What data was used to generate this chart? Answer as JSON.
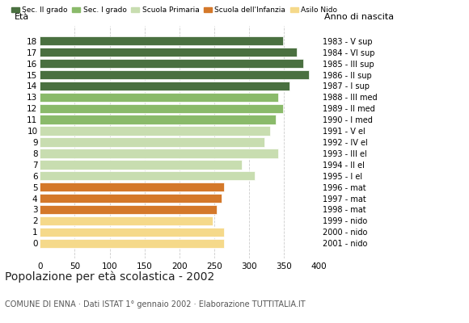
{
  "ages_bottom_to_top": [
    0,
    1,
    2,
    3,
    4,
    5,
    6,
    7,
    8,
    9,
    10,
    11,
    12,
    13,
    14,
    15,
    16,
    17,
    18
  ],
  "values_bottom_to_top": [
    264,
    264,
    248,
    254,
    260,
    264,
    308,
    290,
    342,
    322,
    330,
    338,
    348,
    342,
    358,
    386,
    378,
    368,
    348
  ],
  "anno_nascita_bottom_to_top": [
    "2001 - nido",
    "2000 - nido",
    "1999 - nido",
    "1998 - mat",
    "1997 - mat",
    "1996 - mat",
    "1995 - I el",
    "1994 - II el",
    "1993 - III el",
    "1992 - IV el",
    "1991 - V el",
    "1990 - I med",
    "1989 - II med",
    "1988 - III med",
    "1987 - I sup",
    "1986 - II sup",
    "1985 - III sup",
    "1984 - VI sup",
    "1983 - V sup"
  ],
  "colors_bottom_to_top": [
    "#f5d98a",
    "#f5d98a",
    "#f5d98a",
    "#d4782a",
    "#d4782a",
    "#d4782a",
    "#c8ddb0",
    "#c8ddb0",
    "#c8ddb0",
    "#c8ddb0",
    "#c8ddb0",
    "#8aba6a",
    "#8aba6a",
    "#8aba6a",
    "#4a7040",
    "#4a7040",
    "#4a7040",
    "#4a7040",
    "#4a7040"
  ],
  "legend_labels": [
    "Sec. II grado",
    "Sec. I grado",
    "Scuola Primaria",
    "Scuola dell'Infanzia",
    "Asilo Nido"
  ],
  "legend_colors": [
    "#4a7040",
    "#8aba6a",
    "#c8ddb0",
    "#d4782a",
    "#f5d98a"
  ],
  "title": "Popolazione per età scolastica - 2002",
  "subtitle": "COMUNE DI ENNA · Dati ISTAT 1° gennaio 2002 · Elaborazione TUTTITALIA.IT",
  "xlim": [
    0,
    400
  ],
  "xticks": [
    0,
    50,
    100,
    150,
    200,
    250,
    300,
    350,
    400
  ],
  "grid_values": [
    50,
    100,
    150,
    200,
    250,
    300,
    350,
    400
  ],
  "bg_color": "#ffffff",
  "bar_height": 0.82
}
